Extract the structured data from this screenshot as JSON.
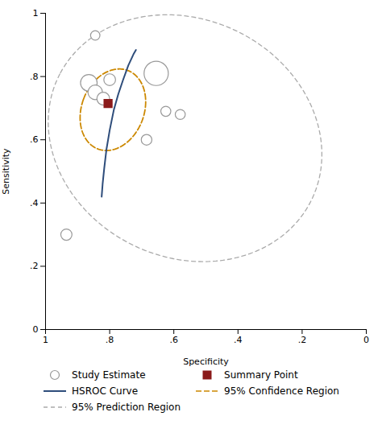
{
  "chart_data": {
    "type": "scatter",
    "xlabel": "Specificity",
    "ylabel": "Sensitivity",
    "xlim": [
      1.0,
      0.0
    ],
    "ylim": [
      0.0,
      1.0
    ],
    "xticks": [
      1,
      {
        "value": 0.8,
        "label": ".8"
      },
      {
        "value": 0.6,
        "label": ".6"
      },
      {
        "value": 0.4,
        "label": ".4"
      },
      {
        "value": 0.2,
        "label": ".2"
      },
      0
    ],
    "yticks": [
      0,
      {
        "value": 0.2,
        "label": ".2"
      },
      {
        "value": 0.4,
        "label": ".4"
      },
      {
        "value": 0.6,
        "label": ".6"
      },
      {
        "value": 0.8,
        "label": ".8"
      },
      1
    ],
    "legend": "bottom",
    "series": [
      {
        "name": "Study Estimate",
        "type": "scatter",
        "marker": "circle",
        "color": "#999999",
        "x": [
          0.935,
          0.865,
          0.845,
          0.82,
          0.8,
          0.685,
          0.655,
          0.625,
          0.845,
          0.58
        ],
        "values": [
          0.3,
          0.78,
          0.75,
          0.73,
          0.79,
          0.6,
          0.81,
          0.69,
          0.93,
          0.68
        ],
        "size": [
          100,
          220,
          170,
          130,
          110,
          90,
          470,
          80,
          70,
          80
        ]
      },
      {
        "name": "Summary Point",
        "type": "scatter",
        "marker": "square",
        "color": "#8b1a1a",
        "x": [
          0.805
        ],
        "values": [
          0.715
        ]
      },
      {
        "name": "HSROC Curve",
        "type": "line",
        "color": "#2e4d7b",
        "x": [
          0.825,
          0.822,
          0.817,
          0.81,
          0.8,
          0.787,
          0.773,
          0.758,
          0.742,
          0.726,
          0.718
        ],
        "values": [
          0.42,
          0.46,
          0.51,
          0.57,
          0.63,
          0.695,
          0.745,
          0.79,
          0.835,
          0.87,
          0.884
        ]
      },
      {
        "name": "95% Confidence Region",
        "type": "ellipse",
        "line_style": "dashed",
        "color": "#cc8800",
        "center_x": 0.79,
        "center_y": 0.695,
        "width": 0.195,
        "height": 0.265,
        "angle": 20
      },
      {
        "name": "95% Prediction Region",
        "type": "ellipse",
        "line_style": "dashed",
        "color": "#aaaaaa",
        "center_x": 0.565,
        "center_y": 0.605,
        "width": 0.88,
        "height": 0.75,
        "angle": 28
      }
    ]
  }
}
